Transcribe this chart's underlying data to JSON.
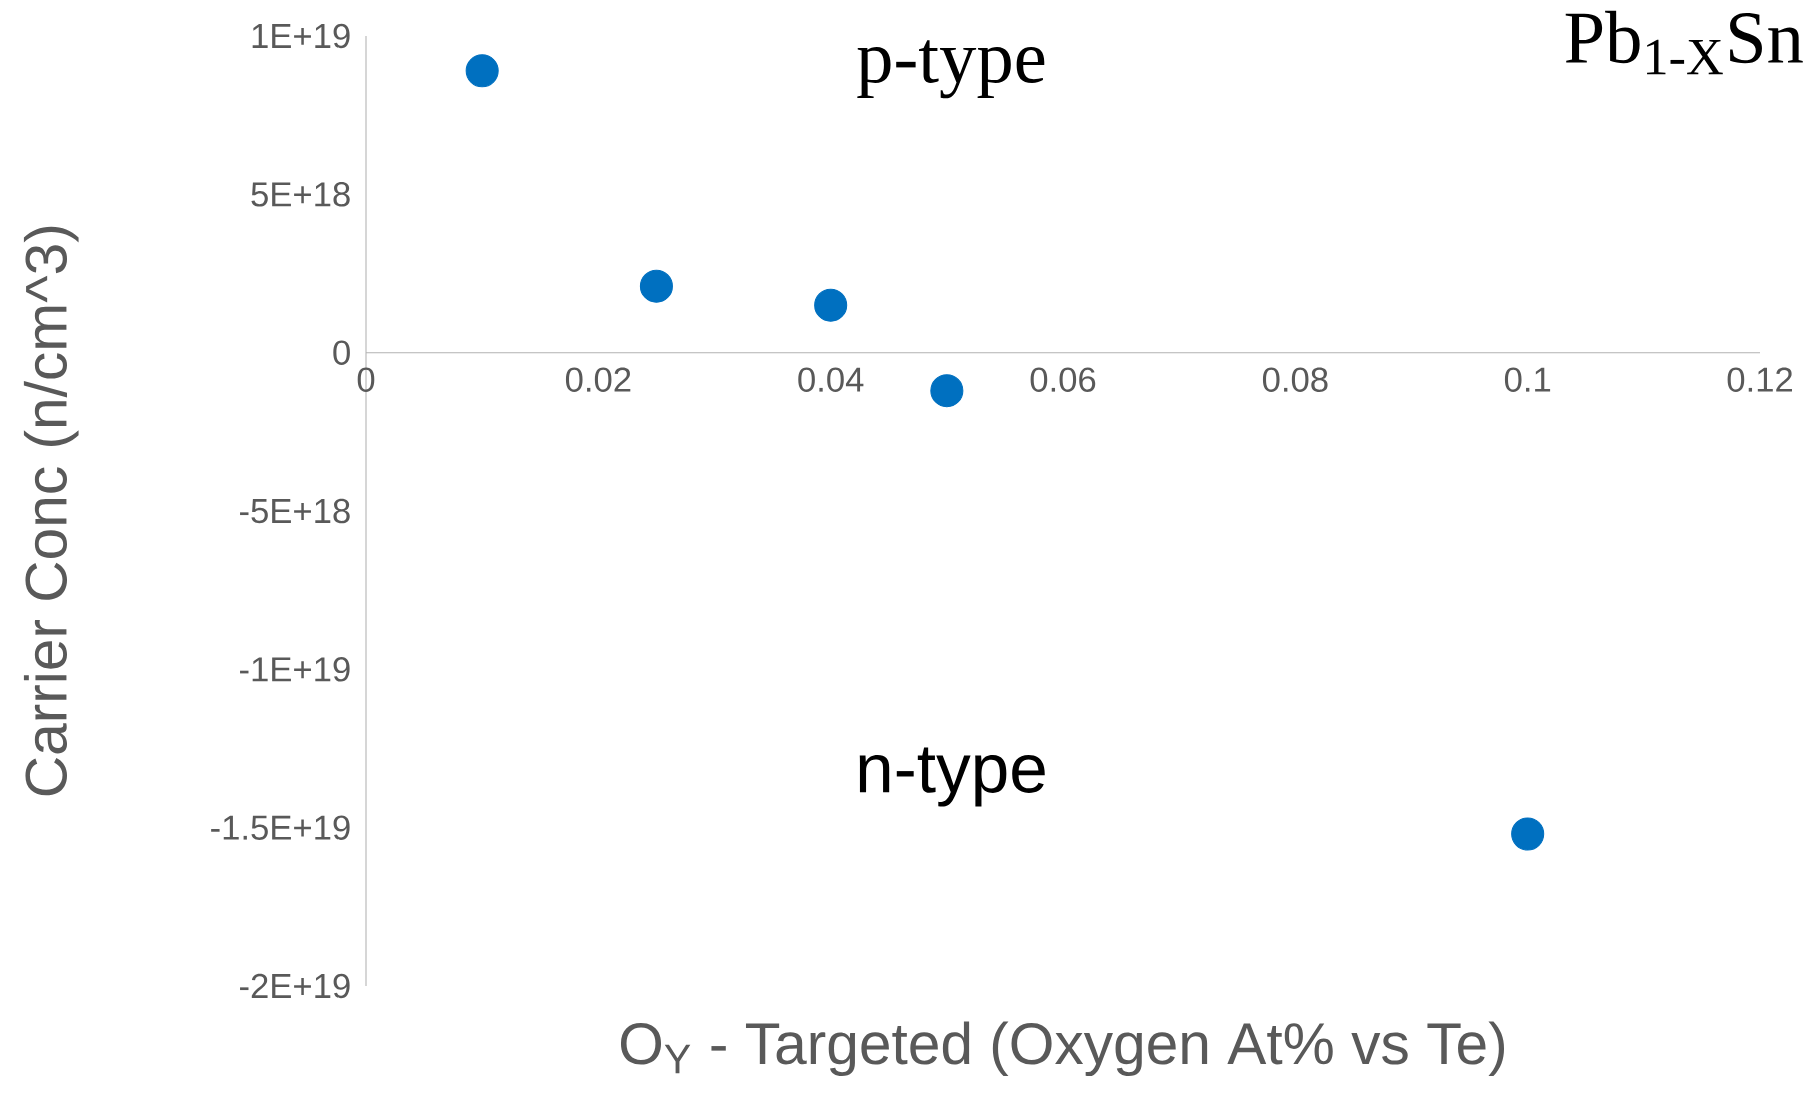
{
  "chart_data": {
    "type": "scatter",
    "title": "Pb$_{1-X}$Sn",
    "xlabel": "O$_{Y}$ - Targeted (Oxygen At% vs Te)",
    "ylabel": "Carrier Conc (n/cm^3)",
    "annotations": [
      "p-type",
      "n-type"
    ],
    "x": [
      0.01,
      0.025,
      0.04,
      0.05,
      0.1
    ],
    "series": [
      {
        "color": "#0070c0",
        "values": [
          8.9e+18,
          2.1e+18,
          1.5e+18,
          -1.2e+18,
          -1.52e+19
        ]
      }
    ],
    "xlim": [
      0,
      0.12
    ],
    "xticks": [
      0,
      0.02,
      0.04,
      0.06,
      0.08,
      0.1,
      0.12
    ],
    "ylim": [
      -2e+19,
      1e+19
    ],
    "yticks": [
      {
        "value": -2e+19,
        "label": "-2E+19"
      },
      {
        "value": -1.5e+19,
        "label": "-1.5E+19"
      },
      {
        "value": -1e+19,
        "label": "-1E+19"
      },
      {
        "value": -5e+18,
        "label": "-5E+18"
      },
      {
        "value": 0,
        "label": "0"
      },
      {
        "value": 5e+18,
        "label": "5E+18"
      },
      {
        "value": 1e+19,
        "label": "1E+19"
      }
    ],
    "marker": "circle"
  }
}
